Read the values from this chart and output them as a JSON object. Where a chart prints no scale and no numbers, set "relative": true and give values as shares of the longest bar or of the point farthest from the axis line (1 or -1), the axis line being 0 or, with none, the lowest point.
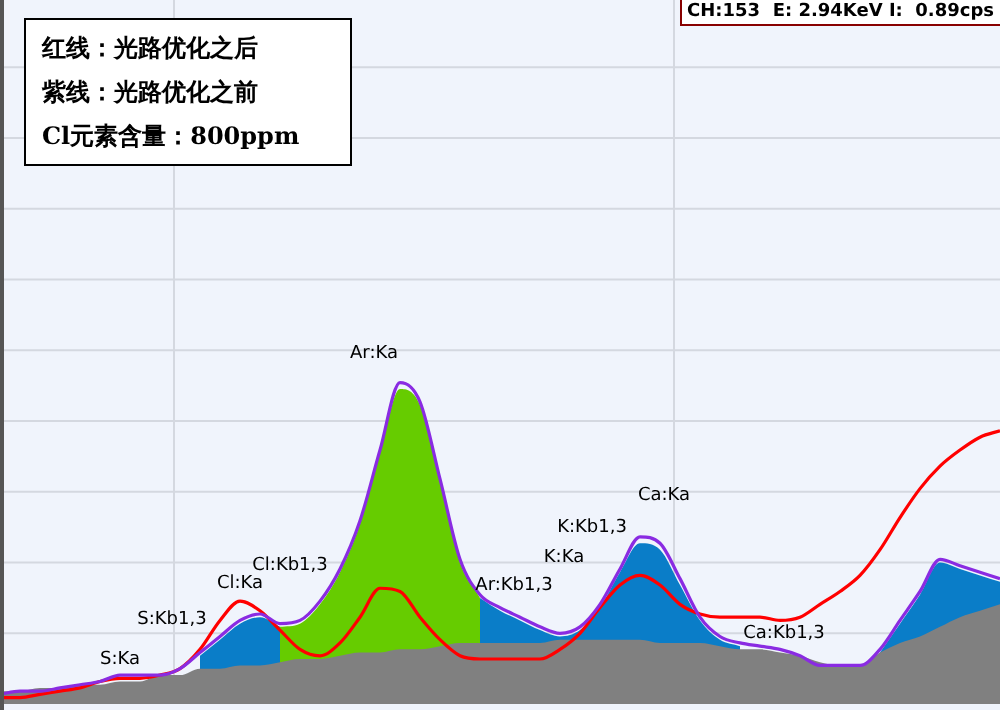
{
  "chart_data": {
    "type": "line",
    "relative": true,
    "grid": true,
    "legend": false,
    "marker": "none",
    "line_style": "solid",
    "categories": [
      null,
      null,
      null,
      null,
      null,
      null,
      null,
      null,
      null,
      null,
      null,
      null,
      null,
      null,
      null,
      null,
      null,
      null,
      null,
      null,
      null,
      null,
      null,
      null,
      null,
      null,
      null,
      null,
      null,
      null,
      null,
      null,
      null,
      null,
      null,
      null,
      null,
      null,
      null,
      null,
      null,
      null,
      null,
      null,
      null,
      null,
      null,
      null,
      null,
      null,
      null
    ],
    "series": [
      {
        "type": "area",
        "color": "#0a7dc8",
        "values": [
          null,
          null,
          null,
          null,
          null,
          null,
          null,
          null,
          null,
          null,
          0.15,
          0.2,
          0.25,
          0.27,
          0.24,
          null,
          null,
          null,
          null,
          null,
          null,
          null,
          null,
          null,
          0.33,
          0.29,
          0.26,
          0.23,
          0.21,
          0.23,
          0.3,
          0.41,
          0.5,
          0.48,
          0.37,
          0.26,
          0.2,
          0.18,
          null,
          null,
          null,
          null,
          null,
          null,
          0.16,
          0.25,
          0.34,
          0.44,
          0.42,
          0.4,
          0.38
        ]
      },
      {
        "type": "area",
        "color": "#66cc00",
        "values": [
          null,
          null,
          null,
          null,
          null,
          null,
          null,
          null,
          null,
          null,
          null,
          null,
          null,
          null,
          0.24,
          0.25,
          0.31,
          0.41,
          0.56,
          0.78,
          0.98,
          0.93,
          0.69,
          0.44,
          0.33,
          null,
          null,
          null,
          null,
          null,
          null,
          null,
          null,
          null,
          null,
          null,
          null,
          null,
          null,
          null,
          null,
          null,
          null,
          null,
          null,
          null,
          null,
          null,
          null,
          null,
          null
        ]
      },
      {
        "type": "area",
        "color": "#808080",
        "values": [
          0.04,
          0.04,
          0.05,
          0.05,
          0.06,
          0.06,
          0.07,
          0.07,
          0.09,
          0.09,
          0.11,
          0.11,
          0.12,
          0.12,
          0.13,
          0.14,
          0.14,
          0.15,
          0.16,
          0.16,
          0.17,
          0.17,
          0.18,
          0.19,
          0.19,
          0.19,
          0.19,
          0.19,
          0.2,
          0.2,
          0.2,
          0.2,
          0.2,
          0.19,
          0.19,
          0.19,
          0.18,
          0.17,
          0.17,
          0.16,
          0.15,
          0.13,
          0.12,
          0.12,
          0.16,
          0.19,
          0.21,
          0.24,
          0.27,
          0.29,
          0.31
        ]
      },
      {
        "type": "line",
        "color": "#8a2be2",
        "values": [
          0.03,
          0.04,
          0.04,
          0.05,
          0.06,
          0.07,
          0.09,
          0.09,
          0.09,
          0.11,
          0.16,
          0.21,
          0.26,
          0.28,
          0.25,
          0.26,
          0.32,
          0.42,
          0.57,
          0.79,
          1.0,
          0.94,
          0.7,
          0.45,
          0.34,
          0.3,
          0.27,
          0.24,
          0.22,
          0.24,
          0.31,
          0.42,
          0.52,
          0.5,
          0.39,
          0.27,
          0.21,
          0.19,
          0.18,
          0.17,
          0.15,
          0.12,
          0.12,
          0.12,
          0.17,
          0.26,
          0.35,
          0.45,
          0.43,
          0.41,
          0.39
        ]
      },
      {
        "type": "line",
        "color": "#ff0000",
        "values": [
          0.02,
          0.02,
          0.03,
          0.04,
          0.05,
          0.07,
          0.08,
          0.08,
          0.09,
          0.11,
          0.17,
          0.26,
          0.32,
          0.29,
          0.23,
          0.17,
          0.15,
          0.19,
          0.27,
          0.36,
          0.35,
          0.27,
          0.2,
          0.15,
          0.14,
          0.14,
          0.14,
          0.14,
          0.17,
          0.22,
          0.3,
          0.37,
          0.4,
          0.37,
          0.31,
          0.28,
          0.27,
          0.27,
          0.27,
          0.26,
          0.27,
          0.31,
          0.35,
          0.4,
          0.48,
          0.58,
          0.67,
          0.74,
          0.79,
          0.83,
          0.85
        ]
      }
    ],
    "annotations": [
      "红线：光路优化之后",
      "紫线：光路优化之前",
      "Cl元素含量：800ppm",
      "CH:153  E: 2.94KeV I:  0.89cps",
      "S:Ka",
      "S:Kb1,3",
      "Cl:Ka",
      "Cl:Kb1,3",
      "Ar:Ka",
      "Ar:Kb1,3",
      "K:Ka",
      "K:Kb1,3",
      "Ca:Ka",
      "Ca:Kb1,3"
    ]
  }
}
